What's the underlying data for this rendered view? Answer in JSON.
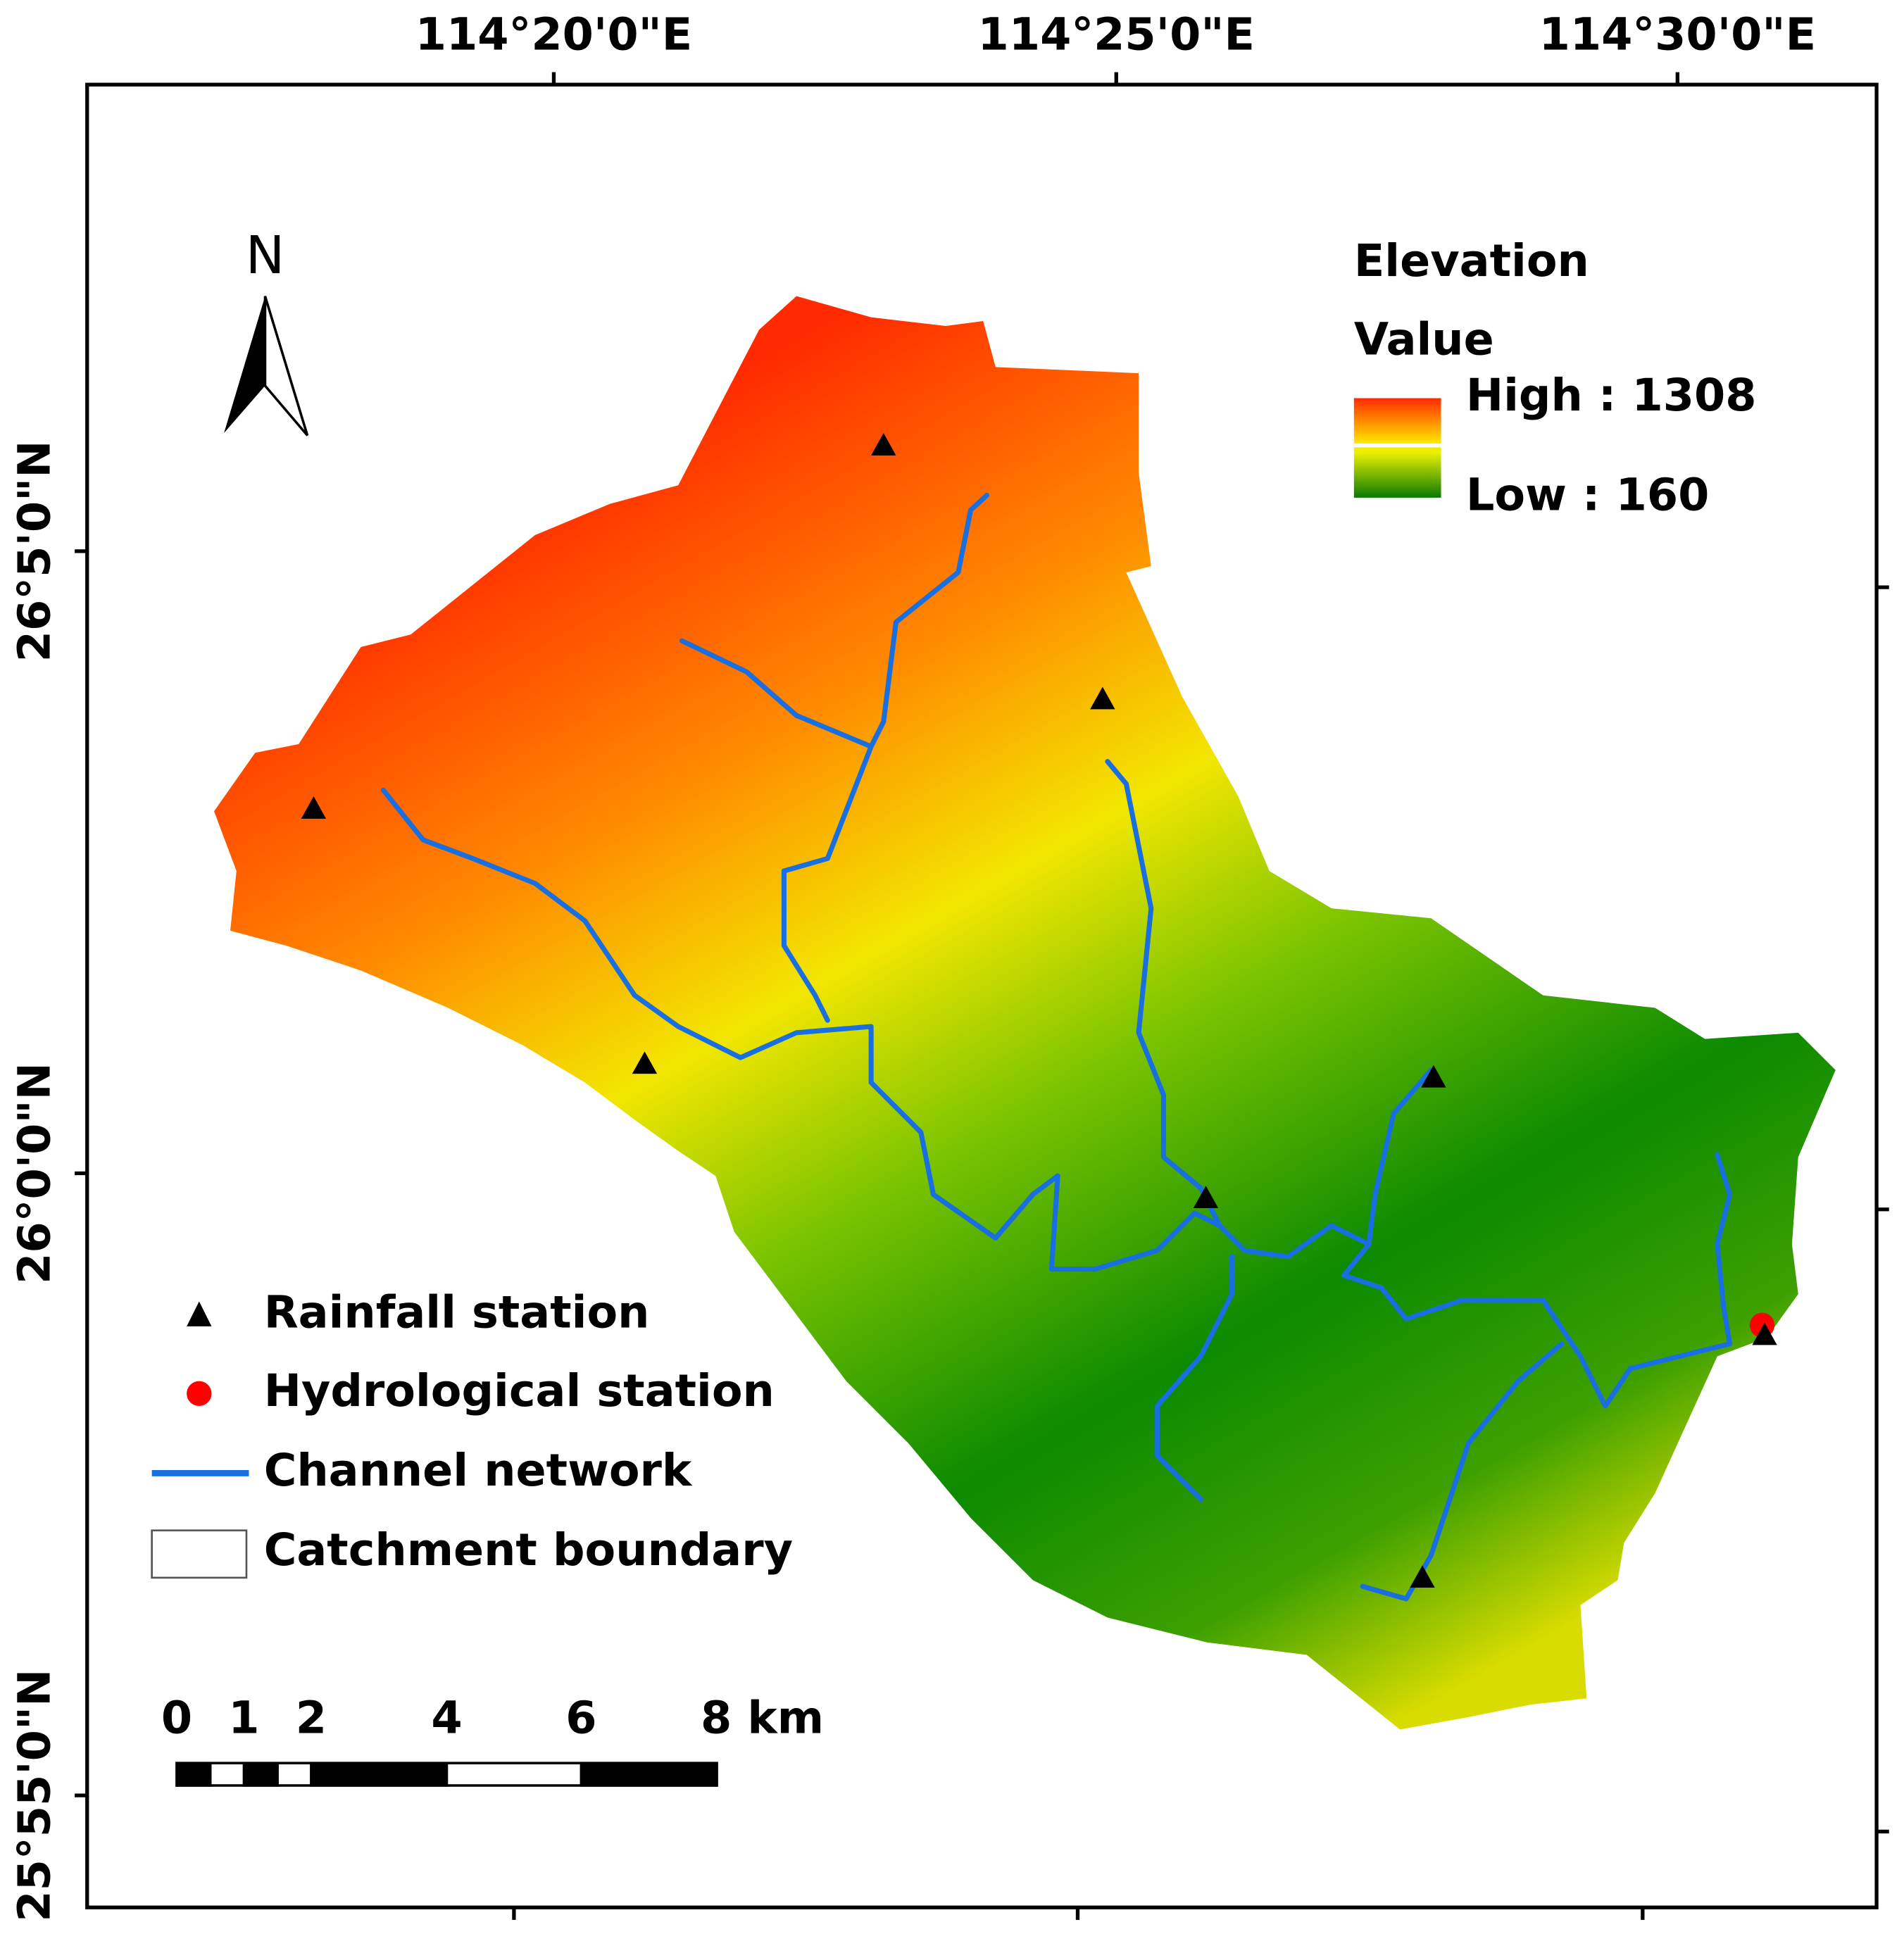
{
  "axes": {
    "top": [
      "114°20'0\"E",
      "114°25'0\"E",
      "114°30'0\"E"
    ],
    "left": [
      "26°5'0\"N",
      "26°0'0\"N",
      "25°55'0\"N"
    ]
  },
  "north_arrow": "N",
  "elevation_legend": {
    "title": "Elevation",
    "subtitle": "Value",
    "high": "High : 1308",
    "low": "Low : 160"
  },
  "legend": [
    "Rainfall station",
    "Hydrological station",
    "Channel network",
    "Catchment boundary"
  ],
  "scale_bar": [
    "0",
    "1",
    "2",
    "4",
    "6",
    "8 km"
  ]
}
